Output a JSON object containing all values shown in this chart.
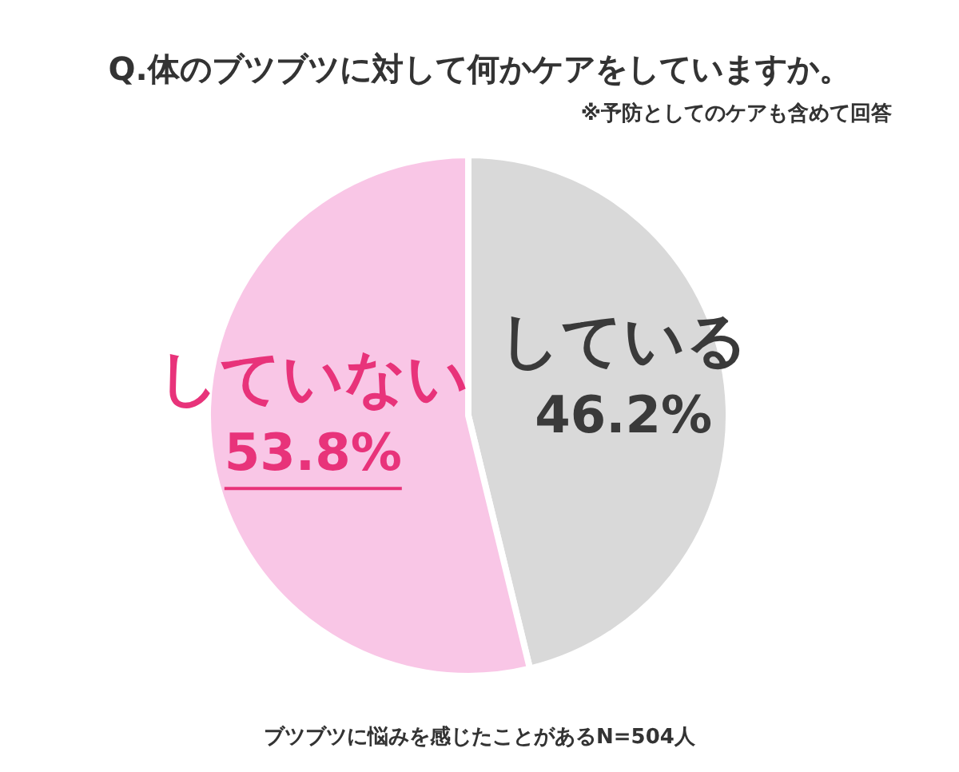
{
  "chart_data": {
    "type": "pie",
    "title": "Q.体のブツブツに対して何かケアをしていますか。",
    "subtitle": "※予防としてのケアも含めて回答",
    "categories": [
      "している",
      "していない"
    ],
    "values": [
      46.2,
      53.8
    ],
    "value_labels": [
      "46.2%",
      "53.8%"
    ],
    "colors": [
      "#d9d9d9",
      "#f9c6e6"
    ],
    "legend": false,
    "annotations": [
      "ブツブツに悩みを感じたことがあるN=504人"
    ]
  }
}
